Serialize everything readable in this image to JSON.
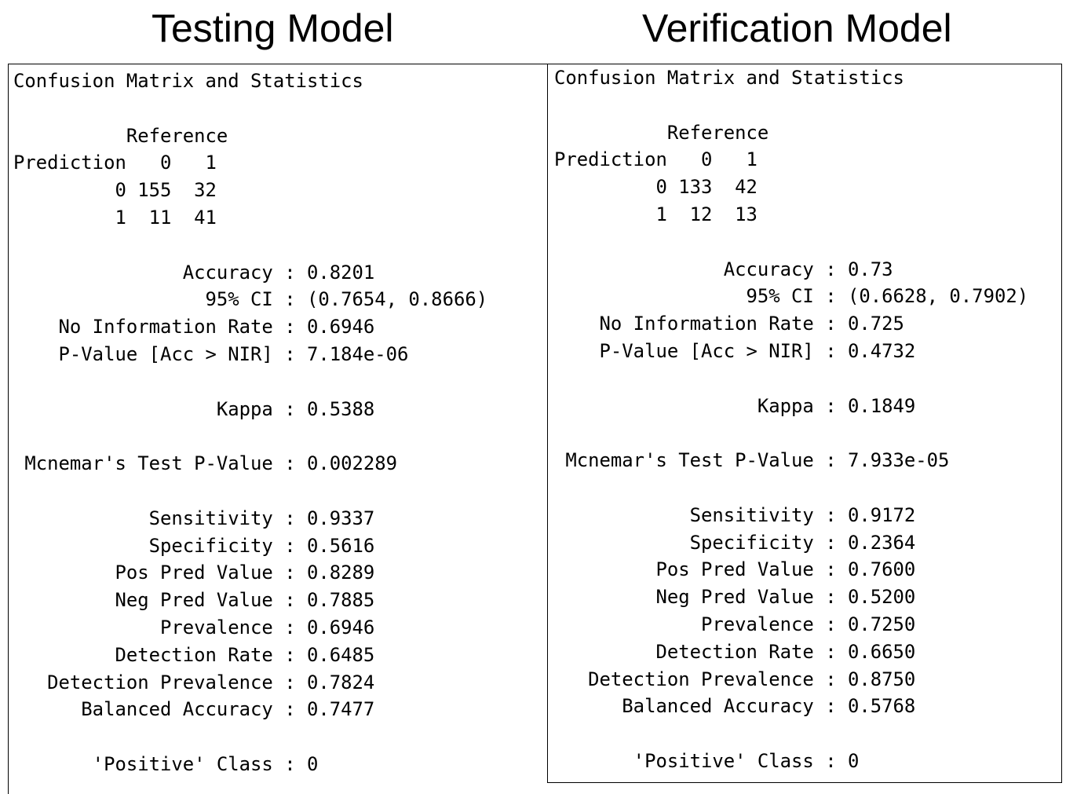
{
  "headings": {
    "left": "Testing Model",
    "right": "Verification Model"
  },
  "panels": {
    "left": {
      "lines": [
        "Confusion Matrix and Statistics",
        "",
        "          Reference",
        "Prediction   0   1",
        "         0 155  32",
        "         1  11  41",
        "",
        "               Accuracy : 0.8201",
        "                 95% CI : (0.7654, 0.8666)",
        "    No Information Rate : 0.6946",
        "    P-Value [Acc > NIR] : 7.184e-06",
        "",
        "                  Kappa : 0.5388",
        "",
        " Mcnemar's Test P-Value : 0.002289",
        "",
        "            Sensitivity : 0.9337",
        "            Specificity : 0.5616",
        "         Pos Pred Value : 0.8289",
        "         Neg Pred Value : 0.7885",
        "             Prevalence : 0.6946",
        "         Detection Rate : 0.6485",
        "   Detection Prevalence : 0.7824",
        "      Balanced Accuracy : 0.7477",
        "",
        "       'Positive' Class : 0"
      ]
    },
    "right": {
      "lines": [
        "Confusion Matrix and Statistics",
        "",
        "          Reference",
        "Prediction   0   1",
        "         0 133  42",
        "         1  12  13",
        "",
        "               Accuracy : 0.73",
        "                 95% CI : (0.6628, 0.7902)",
        "    No Information Rate : 0.725",
        "    P-Value [Acc > NIR] : 0.4732",
        "",
        "                  Kappa : 0.1849",
        "",
        " Mcnemar's Test P-Value : 7.933e-05",
        "",
        "            Sensitivity : 0.9172",
        "            Specificity : 0.2364",
        "         Pos Pred Value : 0.7600",
        "         Neg Pred Value : 0.5200",
        "             Prevalence : 0.7250",
        "         Detection Rate : 0.6650",
        "   Detection Prevalence : 0.8750",
        "      Balanced Accuracy : 0.5768",
        "",
        "       'Positive' Class : 0"
      ]
    }
  }
}
